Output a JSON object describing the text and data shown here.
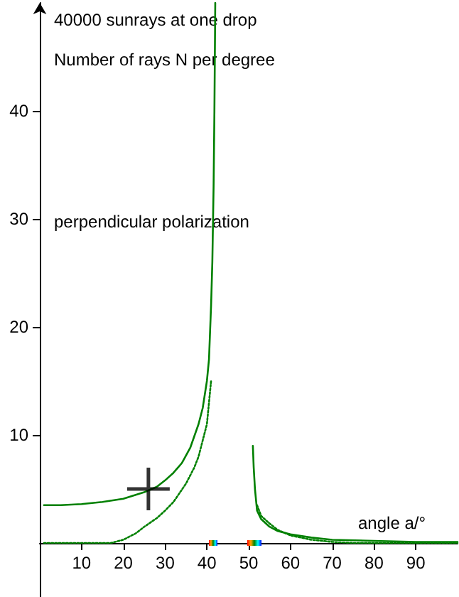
{
  "chart_data": {
    "type": "line",
    "title": "40000 sunrays at one drop",
    "subtitle": "Number of rays N per degree",
    "annotations": [
      "perpendicular polarization"
    ],
    "xlabel": "angle a/°",
    "xlim": [
      0,
      100
    ],
    "xticks": [
      10,
      20,
      30,
      40,
      50,
      60,
      70,
      80,
      90
    ],
    "ylim": [
      -5,
      50
    ],
    "yticks": [
      10,
      20,
      30,
      40
    ],
    "marker": "none",
    "series": [
      {
        "color": "#008000",
        "line_style": "solid",
        "x": [
          1,
          5,
          10,
          15,
          20,
          25,
          28,
          30,
          32,
          34,
          36,
          38,
          39,
          40,
          40.5,
          41,
          41.3,
          41.6,
          41.8,
          42
        ],
        "values": [
          3.5,
          3.5,
          3.6,
          3.8,
          4.1,
          4.7,
          5.2,
          5.8,
          6.5,
          7.4,
          8.8,
          11,
          12.5,
          15,
          17,
          22,
          26,
          33,
          40,
          50
        ]
      },
      {
        "color": "#008000",
        "line_style": "dotted",
        "x": [
          1,
          10,
          17,
          20,
          23,
          25,
          28,
          30,
          32,
          35,
          37,
          38,
          39,
          40,
          41
        ],
        "values": [
          0,
          0,
          0,
          0.3,
          0.9,
          1.5,
          2.3,
          3,
          3.8,
          5.5,
          7,
          8,
          9.5,
          11,
          15
        ]
      },
      {
        "color": "#008000",
        "line_style": "solid",
        "x": [
          51,
          51.2,
          51.5,
          52,
          53,
          55,
          57,
          60,
          65,
          70,
          80,
          90,
          100
        ],
        "values": [
          9,
          7,
          5,
          3,
          2.2,
          1.5,
          1.1,
          0.8,
          0.5,
          0.3,
          0.2,
          0.1,
          0.1
        ]
      },
      {
        "color": "#008000",
        "line_style": "dotted",
        "x": [
          52,
          53,
          55,
          57,
          60,
          65,
          70,
          75,
          80,
          90,
          100
        ],
        "values": [
          3.5,
          2.5,
          1.8,
          1.2,
          0.7,
          0.3,
          0.1,
          0,
          0,
          0,
          0
        ]
      },
      {
        "type": "scatter",
        "color": "#000000",
        "marker": "cross",
        "x": [
          26
        ],
        "values": [
          5
        ]
      }
    ]
  }
}
